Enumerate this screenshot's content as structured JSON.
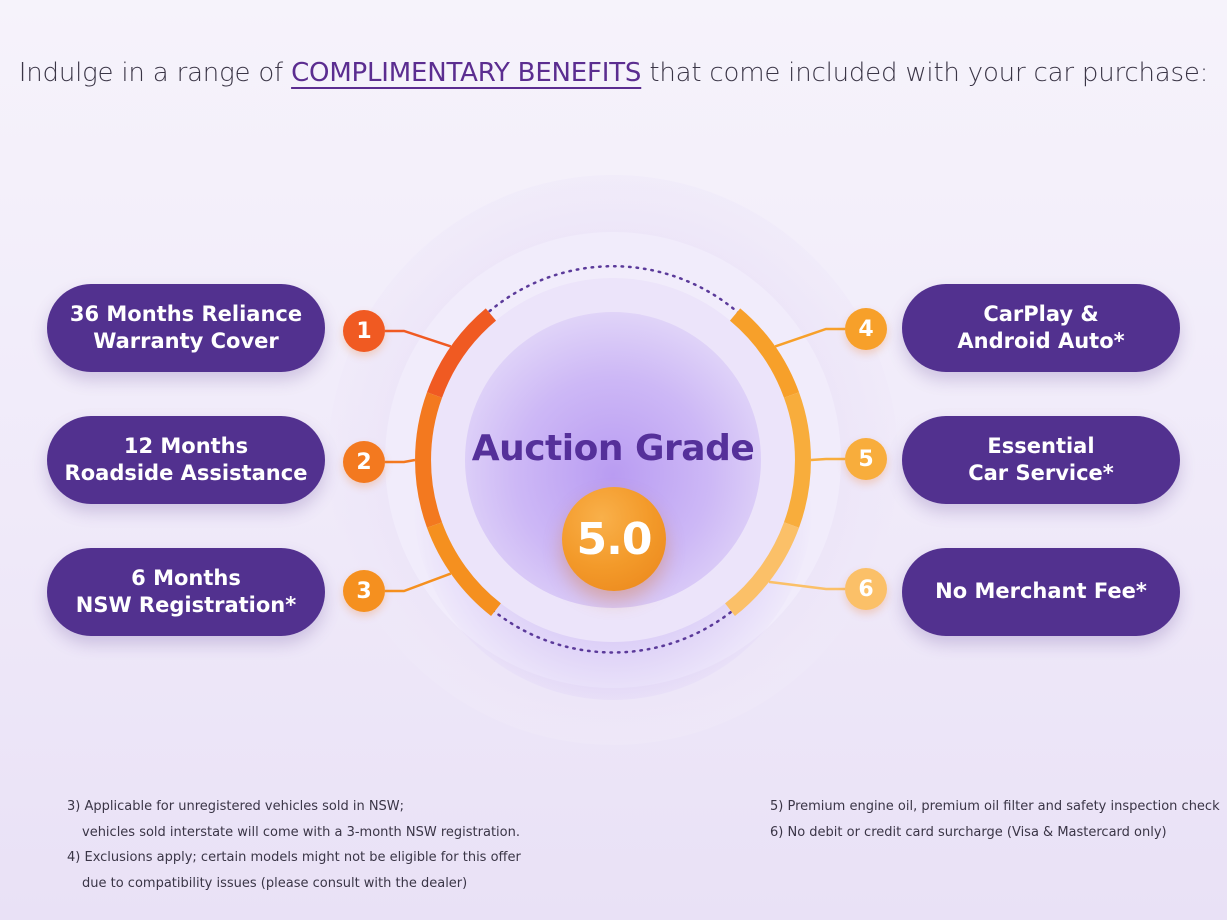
{
  "headline": {
    "prefix": "Indulge in a range of",
    "highlight": "COMPLIMENTARY BENEFITS",
    "suffix": "that come included with your car purchase:"
  },
  "center": {
    "title": "Auction Grade",
    "grade": "5.0"
  },
  "benefits": [
    {
      "number": "1",
      "label": "36 Months Reliance\nWarranty Cover",
      "color": "#f05a22"
    },
    {
      "number": "2",
      "label": "12 Months\nRoadside Assistance",
      "color": "#f3791f"
    },
    {
      "number": "3",
      "label": "6 Months\nNSW Registration*",
      "color": "#f5901f"
    },
    {
      "number": "4",
      "label": "CarPlay &\nAndroid Auto*",
      "color": "#f7a02a"
    },
    {
      "number": "5",
      "label": "Essential\nCar Service*",
      "color": "#f8ad3c"
    },
    {
      "number": "6",
      "label": "No Merchant Fee*",
      "color": "#fbc068"
    }
  ],
  "footnotes": {
    "left": [
      "3) Applicable for unregistered vehicles sold in NSW;",
      "vehicles sold interstate will come with a 3-month NSW registration.",
      "4) Exclusions apply; certain models might not be eligible for this offer",
      "due to compatibility issues (please consult with the dealer)"
    ],
    "right": [
      "5) Premium engine oil, premium oil filter and safety inspection check",
      "6) No debit or credit card surcharge (Visa & Mastercard only)"
    ]
  }
}
